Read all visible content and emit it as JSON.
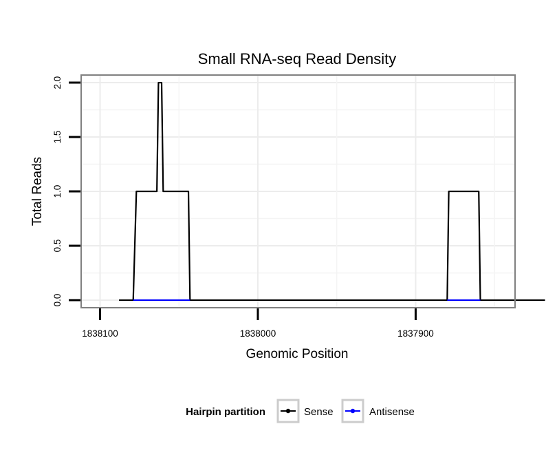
{
  "chart_data": {
    "type": "line",
    "title": "Small RNA-seq Read Density",
    "xlabel": "Genomic Position",
    "ylabel": "Total Reads",
    "xlim": [
      1838112,
      1837837
    ],
    "ylim": [
      -0.07,
      2.07
    ],
    "x_reversed": true,
    "x_ticks": [
      1838100,
      1838000,
      1837900
    ],
    "x_tick_labels": [
      "1838100",
      "1838000",
      "1837900"
    ],
    "y_ticks": [
      0,
      0.5,
      1,
      1.5,
      2
    ],
    "y_tick_labels": [
      "0.0",
      "0.5",
      "1.0",
      "1.5",
      "2.0"
    ],
    "grid": true,
    "legend": {
      "title": "Hairpin partition",
      "position": "bottom",
      "items": [
        {
          "label": "Sense",
          "color": "#000000"
        },
        {
          "label": "Antisense",
          "color": "#0000ff"
        }
      ]
    },
    "series": [
      {
        "name": "Sense",
        "color": "#000000",
        "x": [
          1838088,
          1838079,
          1838077,
          1838064,
          1838063,
          1838061,
          1838060,
          1838059,
          1838058,
          1838044,
          1838043,
          1837880,
          1837879,
          1837860,
          1837859,
          1837818
        ],
        "y": [
          0,
          0,
          1,
          1,
          2,
          2,
          1,
          1,
          1,
          1,
          0,
          0,
          1,
          1,
          0,
          0
        ]
      },
      {
        "name": "Antisense",
        "color": "#0000ff",
        "x": [
          1838079,
          1838043,
          1837880,
          1837859
        ],
        "y": [
          0,
          0,
          0,
          0
        ],
        "segments": [
          [
            0,
            1
          ],
          [
            2,
            3
          ]
        ]
      }
    ]
  }
}
